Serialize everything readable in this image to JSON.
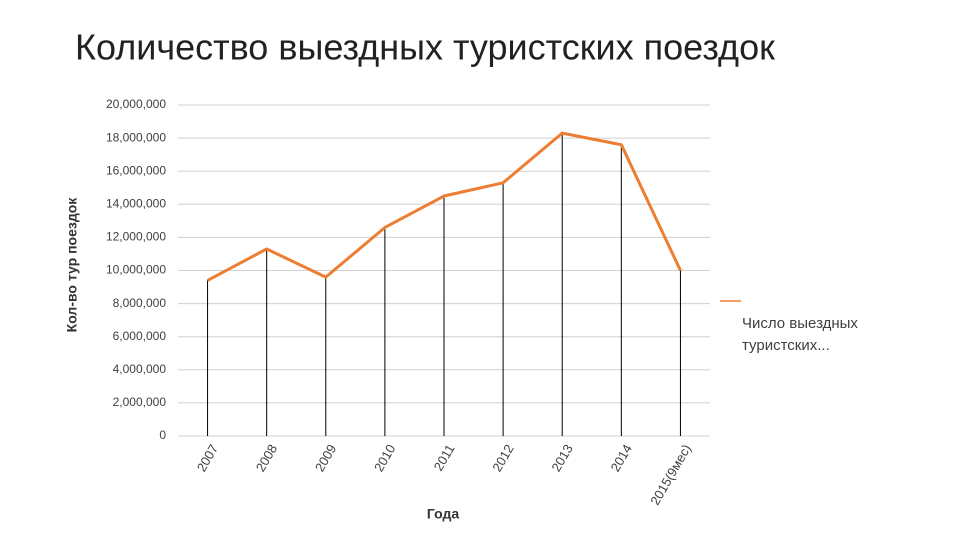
{
  "chart_data": {
    "type": "line",
    "title": "Количество выездных туристских поездок",
    "y_label": "Кол-во тур поездок",
    "x_label": "Года",
    "categories": [
      "2007",
      "2008",
      "2009",
      "2010",
      "2011",
      "2012",
      "2013",
      "2014",
      "2015(9мес)"
    ],
    "series": [
      {
        "name": "Число выездных туристских...",
        "color": "#ed7d31",
        "values": [
          9400000,
          11300000,
          9600000,
          12600000,
          14500000,
          15300000,
          18300000,
          17600000,
          10000000
        ]
      }
    ],
    "ylim": [
      0,
      20000000
    ],
    "yticks": [
      0,
      {
        "value": 2000000,
        "label": "2,000,000"
      },
      {
        "value": 4000000,
        "label": "4,000,000"
      },
      {
        "value": 6000000,
        "label": "6,000,000"
      },
      {
        "value": 8000000,
        "label": "8,000,000"
      },
      {
        "value": 10000000,
        "label": "10,000,000"
      },
      {
        "value": 12000000,
        "label": "12,000,000"
      },
      {
        "value": 14000000,
        "label": "14,000,000"
      },
      {
        "value": 16000000,
        "label": "16,000,000"
      },
      {
        "value": 18000000,
        "label": "18,000,000"
      },
      {
        "value": 20000000,
        "label": "20,000,000"
      }
    ],
    "grid": true,
    "drop_lines": true,
    "legend": "right"
  }
}
